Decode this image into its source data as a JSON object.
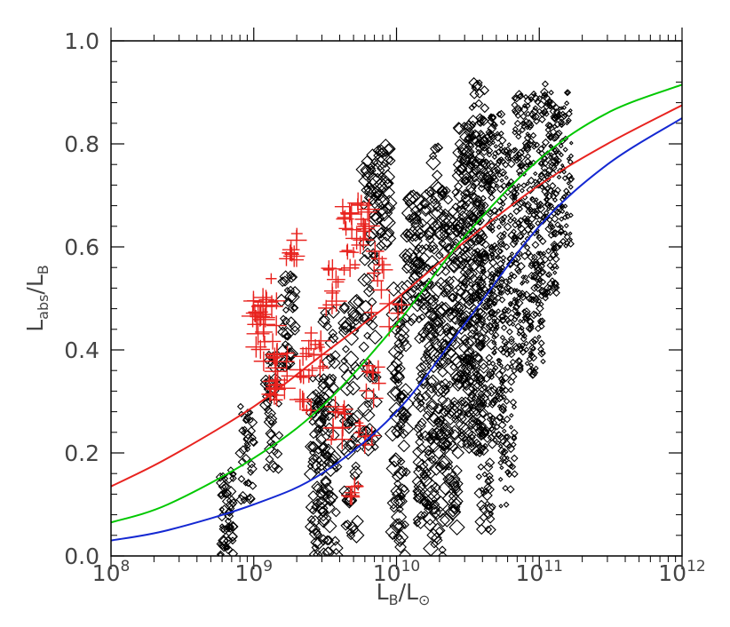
{
  "chart_data": {
    "type": "scatter",
    "title": "",
    "xlabel": {
      "base": "L",
      "sub": "B",
      "sep": "/L",
      "sun": "⊙"
    },
    "ylabel": {
      "num_base": "L",
      "num_sub": "abs",
      "sep": "/L",
      "den_sub": "B"
    },
    "x_scale": "log",
    "xlim": [
      100000000,
      1000000000000
    ],
    "ylim": [
      0.0,
      1.0
    ],
    "x_ticks": [
      {
        "value": 100000000,
        "base": "10",
        "exp": "8"
      },
      {
        "value": 1000000000,
        "base": "10",
        "exp": "9"
      },
      {
        "value": 10000000000,
        "base": "10",
        "exp": "10"
      },
      {
        "value": 100000000000,
        "base": "10",
        "exp": "11"
      },
      {
        "value": 1000000000000,
        "base": "10",
        "exp": "12"
      }
    ],
    "y_ticks": [
      "0.0",
      "0.2",
      "0.4",
      "0.6",
      "0.8",
      "1.0"
    ],
    "grid": false,
    "series": [
      {
        "kind": "curve",
        "color": "#e8231f",
        "points": [
          [
            100000000,
            0.135
          ],
          [
            250000000,
            0.19
          ],
          [
            1000000000,
            0.29
          ],
          [
            3000000000,
            0.39
          ],
          [
            10000000000,
            0.5
          ],
          [
            30000000000,
            0.61
          ],
          [
            100000000000,
            0.72
          ],
          [
            300000000000,
            0.8
          ],
          [
            1000000000000,
            0.875
          ]
        ]
      },
      {
        "kind": "curve",
        "color": "#00c800",
        "points": [
          [
            100000000,
            0.065
          ],
          [
            250000000,
            0.1
          ],
          [
            1000000000,
            0.19
          ],
          [
            3000000000,
            0.29
          ],
          [
            10000000000,
            0.45
          ],
          [
            30000000000,
            0.62
          ],
          [
            100000000000,
            0.77
          ],
          [
            300000000000,
            0.86
          ],
          [
            1000000000000,
            0.915
          ]
        ]
      },
      {
        "kind": "curve",
        "color": "#1428d2",
        "points": [
          [
            100000000,
            0.03
          ],
          [
            250000000,
            0.05
          ],
          [
            1000000000,
            0.1
          ],
          [
            3000000000,
            0.16
          ],
          [
            10000000000,
            0.28
          ],
          [
            30000000000,
            0.45
          ],
          [
            100000000000,
            0.64
          ],
          [
            300000000000,
            0.76
          ],
          [
            1000000000000,
            0.85
          ]
        ]
      },
      {
        "kind": "points",
        "marker": "diamond",
        "color": "#000000",
        "clusters": [
          {
            "x": 650000000,
            "y_lo": 0.0,
            "y_hi": 0.17,
            "n": 60,
            "size": 4
          },
          {
            "x": 900000000,
            "y_lo": 0.1,
            "y_hi": 0.3,
            "n": 40,
            "size": 4
          },
          {
            "x": 1350000000,
            "y_lo": 0.16,
            "y_hi": 0.4,
            "n": 40,
            "size": 5
          },
          {
            "x": 1750000000,
            "y_lo": 0.36,
            "y_hi": 0.55,
            "n": 40,
            "size": 5
          },
          {
            "x": 2800000000,
            "y_lo": 0.0,
            "y_hi": 0.36,
            "n": 80,
            "size": 5
          },
          {
            "x": 3400000000,
            "y_lo": 0.0,
            "y_hi": 0.48,
            "n": 60,
            "size": 6
          },
          {
            "x": 4800000000,
            "y_lo": 0.03,
            "y_hi": 0.5,
            "n": 60,
            "size": 6
          },
          {
            "x": 6500000000,
            "y_lo": 0.2,
            "y_hi": 0.78,
            "n": 70,
            "size": 6
          },
          {
            "x": 8200000000,
            "y_lo": 0.6,
            "y_hi": 0.8,
            "n": 40,
            "size": 7
          },
          {
            "x": 10500000000,
            "y_lo": 0.0,
            "y_hi": 0.52,
            "n": 90,
            "size": 6
          },
          {
            "x": 13000000000,
            "y_lo": 0.45,
            "y_hi": 0.7,
            "n": 50,
            "size": 6
          },
          {
            "x": 15500000000,
            "y_lo": 0.05,
            "y_hi": 0.72,
            "n": 110,
            "size": 5
          },
          {
            "x": 19000000000,
            "y_lo": 0.0,
            "y_hi": 0.8,
            "n": 130,
            "size": 6
          },
          {
            "x": 24000000000,
            "y_lo": 0.05,
            "y_hi": 0.72,
            "n": 120,
            "size": 6
          },
          {
            "x": 30000000000,
            "y_lo": 0.2,
            "y_hi": 0.85,
            "n": 180,
            "size": 5
          },
          {
            "x": 37000000000,
            "y_lo": 0.2,
            "y_hi": 0.92,
            "n": 200,
            "size": 4
          },
          {
            "x": 42000000000,
            "y_lo": 0.05,
            "y_hi": 0.85,
            "n": 140,
            "size": 4
          },
          {
            "x": 50000000000,
            "y_lo": 0.2,
            "y_hi": 0.86,
            "n": 180,
            "size": 3
          },
          {
            "x": 60000000000,
            "y_lo": 0.08,
            "y_hi": 0.8,
            "n": 140,
            "size": 3
          },
          {
            "x": 75000000000,
            "y_lo": 0.35,
            "y_hi": 0.9,
            "n": 160,
            "size": 3
          },
          {
            "x": 95000000000,
            "y_lo": 0.35,
            "y_hi": 0.9,
            "n": 160,
            "size": 3
          },
          {
            "x": 120000000000,
            "y_lo": 0.5,
            "y_hi": 0.92,
            "n": 140,
            "size": 3
          },
          {
            "x": 150000000000,
            "y_lo": 0.6,
            "y_hi": 0.9,
            "n": 80,
            "size": 2.5
          }
        ]
      },
      {
        "kind": "points",
        "marker": "plus",
        "color": "#e8231f",
        "clusters": [
          {
            "x": 1100000000,
            "y_lo": 0.4,
            "y_hi": 0.5,
            "n": 18,
            "size": 10
          },
          {
            "x": 1300000000,
            "y_lo": 0.3,
            "y_hi": 0.57,
            "n": 18,
            "size": 10
          },
          {
            "x": 1550000000,
            "y_lo": 0.32,
            "y_hi": 0.4,
            "n": 12,
            "size": 9
          },
          {
            "x": 1800000000,
            "y_lo": 0.55,
            "y_hi": 0.63,
            "n": 8,
            "size": 9
          },
          {
            "x": 2350000000,
            "y_lo": 0.28,
            "y_hi": 0.42,
            "n": 14,
            "size": 9
          },
          {
            "x": 2800000000,
            "y_lo": 0.36,
            "y_hi": 0.44,
            "n": 10,
            "size": 9
          },
          {
            "x": 3500000000,
            "y_lo": 0.48,
            "y_hi": 0.56,
            "n": 10,
            "size": 9
          },
          {
            "x": 3900000000,
            "y_lo": 0.2,
            "y_hi": 0.3,
            "n": 12,
            "size": 9
          },
          {
            "x": 4600000000,
            "y_lo": 0.55,
            "y_hi": 0.68,
            "n": 14,
            "size": 9
          },
          {
            "x": 5200000000,
            "y_lo": 0.11,
            "y_hi": 0.14,
            "n": 6,
            "size": 8
          },
          {
            "x": 5800000000,
            "y_lo": 0.6,
            "y_hi": 0.72,
            "n": 14,
            "size": 9
          },
          {
            "x": 6000000000,
            "y_lo": 0.2,
            "y_hi": 0.27,
            "n": 6,
            "size": 8
          },
          {
            "x": 6800000000,
            "y_lo": 0.3,
            "y_hi": 0.38,
            "n": 8,
            "size": 8
          },
          {
            "x": 7400000000,
            "y_lo": 0.46,
            "y_hi": 0.6,
            "n": 8,
            "size": 8
          },
          {
            "x": 9800000000,
            "y_lo": 0.44,
            "y_hi": 0.5,
            "n": 4,
            "size": 8
          }
        ]
      }
    ]
  }
}
